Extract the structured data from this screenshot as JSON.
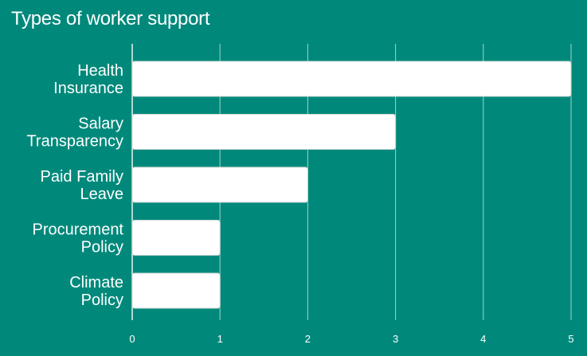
{
  "chart_data": {
    "type": "bar",
    "orientation": "horizontal",
    "title": "Types of worker support",
    "categories": [
      [
        "Health",
        "Insurance"
      ],
      [
        "Salary",
        "Transparency"
      ],
      [
        "Paid Family",
        "Leave"
      ],
      [
        "Procurement",
        "Policy"
      ],
      [
        "Climate",
        "Policy"
      ]
    ],
    "values": [
      5,
      3,
      2,
      1,
      1
    ],
    "xlim": [
      0,
      5
    ],
    "x_ticks": [
      0,
      1,
      2,
      3,
      4,
      5
    ],
    "grid": true,
    "legend": "none",
    "colors": {
      "background": "#00897b",
      "bar": "#ffffff",
      "grid": "#9fd3cc",
      "text": "#ffffff"
    }
  }
}
